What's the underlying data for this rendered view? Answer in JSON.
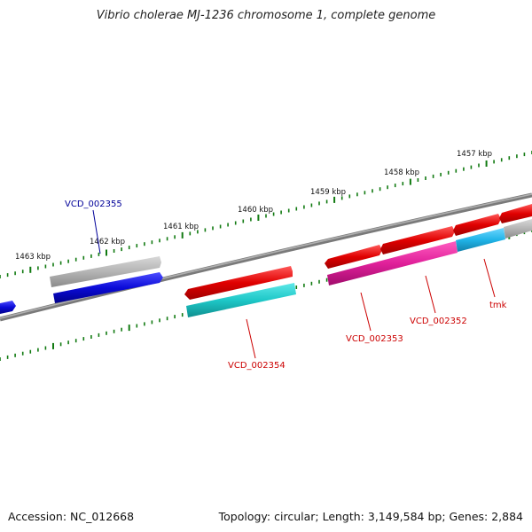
{
  "title": "Vibrio cholerae MJ-1236 chromosome 1, complete genome",
  "footer": {
    "accession": "Accession: NC_012668",
    "summary": "Topology: circular; Length: 3,149,584 bp; Genes: 2,884"
  },
  "colors": {
    "backbone": "#808080",
    "tick": "#117a11",
    "gene_red": "#e00000",
    "gene_blue": "#0b0bd8",
    "gene_gray": "#b4b4b4",
    "cds_cyan": "#1ec8c8",
    "cds_magenta": "#e0209a",
    "cds_skyblue": "#20b4e8",
    "label_blue": "#000099",
    "label_red": "#cc0000"
  },
  "ticks": [
    {
      "label": "1457 kbp"
    },
    {
      "label": "1458 kbp"
    },
    {
      "label": "1459 kbp"
    },
    {
      "label": "1460 kbp"
    },
    {
      "label": "1461 kbp"
    },
    {
      "label": "1462 kbp"
    },
    {
      "label": "1463 kbp"
    }
  ],
  "genes": [
    {
      "name": "VCD_002355",
      "label_color": "#000099"
    },
    {
      "name": "VCD_002354",
      "label_color": "#cc0000"
    },
    {
      "name": "VCD_002353",
      "label_color": "#cc0000"
    },
    {
      "name": "VCD_002352",
      "label_color": "#cc0000"
    },
    {
      "name": "tmk",
      "label_color": "#cc0000"
    }
  ]
}
